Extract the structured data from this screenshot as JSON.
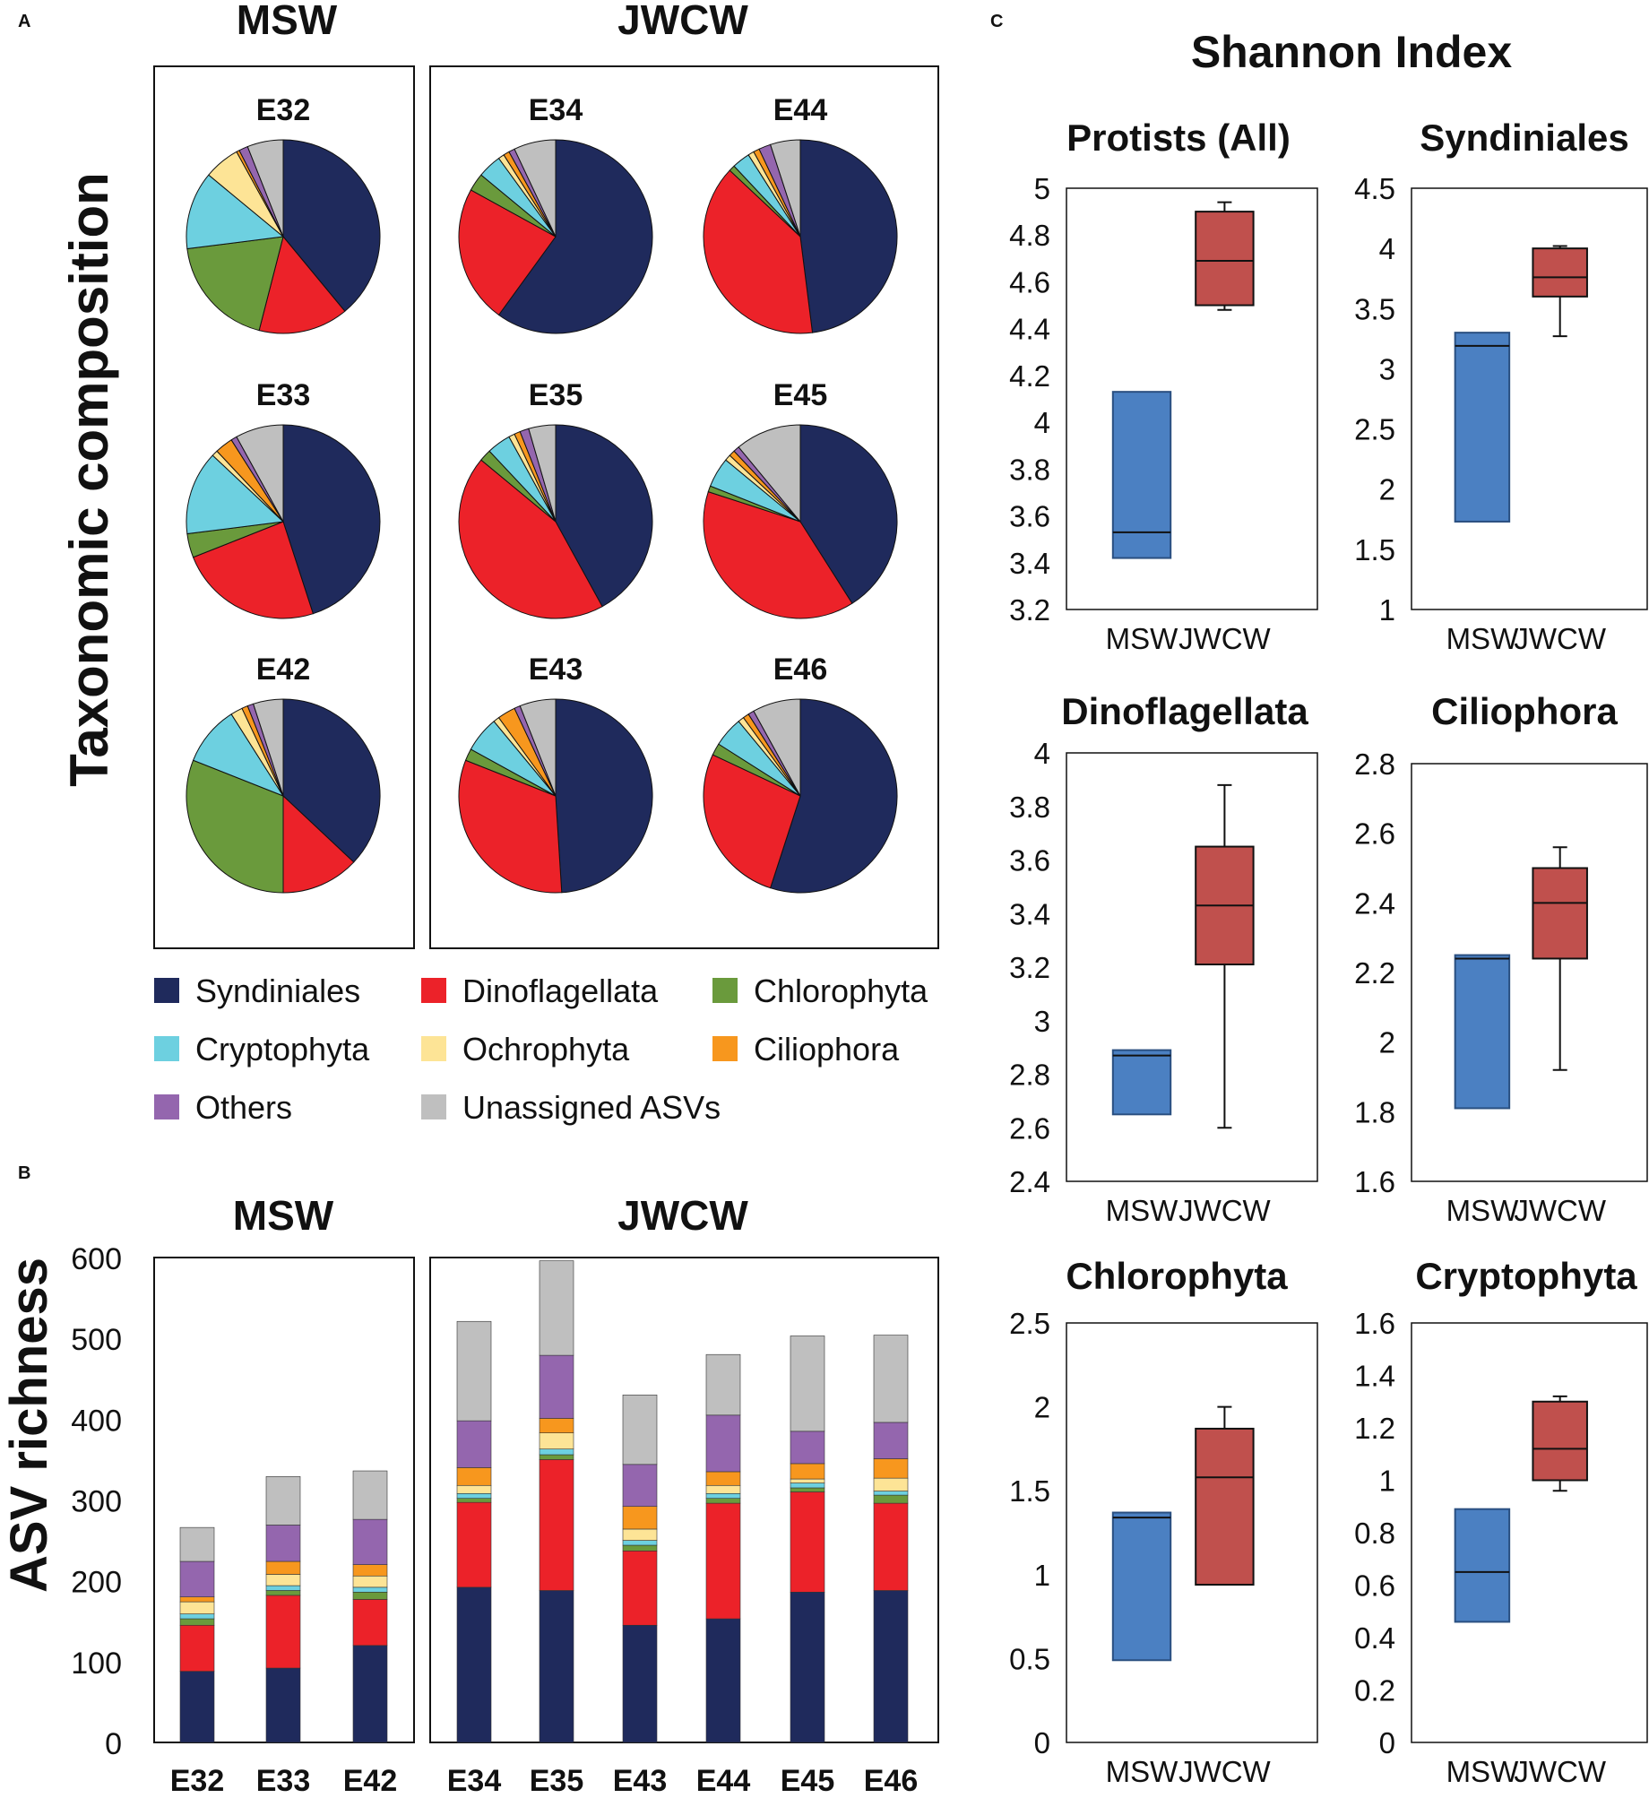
{
  "panel_labels": {
    "a": "A",
    "b": "B",
    "c": "C"
  },
  "legend": [
    {
      "name": "Syndiniales",
      "color": "#1f2a5c"
    },
    {
      "name": "Dinoflagellata",
      "color": "#ec2229"
    },
    {
      "name": "Chlorophyta",
      "color": "#6a9a3c"
    },
    {
      "name": "Cryptophyta",
      "color": "#6dd0e0"
    },
    {
      "name": "Ochrophyta",
      "color": "#fde496"
    },
    {
      "name": "Ciliophora",
      "color": "#f7971e"
    },
    {
      "name": "Others",
      "color": "#9466ae"
    },
    {
      "name": "Unassigned ASVs",
      "color": "#bfbfbf"
    }
  ],
  "chart_data": [
    {
      "type": "pie",
      "title": "Taxonomic composition",
      "groups": [
        {
          "name": "MSW",
          "samples": [
            "E32",
            "E33",
            "E42"
          ]
        },
        {
          "name": "JWCW",
          "samples": [
            "E34",
            "E44",
            "E35",
            "E45",
            "E43",
            "E46"
          ]
        }
      ],
      "categories": [
        "Syndiniales",
        "Dinoflagellata",
        "Chlorophyta",
        "Cryptophyta",
        "Ochrophyta",
        "Ciliophora",
        "Others",
        "Unassigned ASVs"
      ],
      "pies": [
        {
          "sample": "E32",
          "values": [
            39,
            15,
            19,
            13,
            6,
            0.5,
            1.5,
            6
          ]
        },
        {
          "sample": "E33",
          "values": [
            45,
            24,
            4,
            14,
            1,
            3,
            1,
            8
          ]
        },
        {
          "sample": "E42",
          "values": [
            37,
            13,
            31,
            10,
            2,
            1,
            1,
            5
          ]
        },
        {
          "sample": "E34",
          "values": [
            60,
            23,
            3,
            4,
            1,
            1,
            1,
            7
          ]
        },
        {
          "sample": "E44",
          "values": [
            48,
            39,
            1,
            3,
            1,
            1,
            2,
            5
          ]
        },
        {
          "sample": "E35",
          "values": [
            42,
            44,
            2,
            4,
            1,
            1,
            1.5,
            4.5
          ]
        },
        {
          "sample": "E45",
          "values": [
            41,
            39,
            1,
            5,
            1,
            1,
            1,
            11
          ]
        },
        {
          "sample": "E43",
          "values": [
            49,
            32,
            2,
            6,
            1,
            3,
            1,
            6
          ]
        },
        {
          "sample": "E46",
          "values": [
            55,
            27,
            2,
            5,
            1,
            1,
            1,
            8
          ]
        }
      ]
    },
    {
      "type": "bar",
      "stacked": true,
      "ylabel": "ASV richness",
      "ylim": [
        0,
        600
      ],
      "yticks": [
        0,
        100,
        200,
        300,
        400,
        500,
        600
      ],
      "groups": [
        {
          "name": "MSW",
          "categories": [
            "E32",
            "E33",
            "E42"
          ]
        },
        {
          "name": "JWCW",
          "categories": [
            "E34",
            "E35",
            "E43",
            "E44",
            "E45",
            "E46"
          ]
        }
      ],
      "series_order": [
        "Syndiniales",
        "Dinoflagellata",
        "Chlorophyta",
        "Cryptophyta",
        "Ochrophyta",
        "Ciliophora",
        "Others",
        "Unassigned ASVs"
      ],
      "stacks": {
        "E32": [
          88,
          57,
          8,
          6,
          15,
          6,
          44,
          42
        ],
        "E33": [
          92,
          90,
          6,
          6,
          14,
          16,
          45,
          60
        ],
        "E42": [
          120,
          57,
          9,
          6,
          14,
          14,
          56,
          60
        ],
        "E34": [
          192,
          105,
          5,
          6,
          10,
          22,
          58,
          123
        ],
        "E35": [
          188,
          162,
          6,
          7,
          20,
          18,
          78,
          117
        ],
        "E43": [
          145,
          92,
          7,
          6,
          14,
          28,
          52,
          86
        ],
        "E44": [
          153,
          143,
          6,
          6,
          10,
          17,
          70,
          75
        ],
        "E45": [
          186,
          124,
          5,
          6,
          5,
          19,
          40,
          118
        ],
        "E46": [
          188,
          108,
          10,
          5,
          16,
          24,
          45,
          108
        ]
      }
    },
    {
      "type": "box",
      "title": "Shannon Index",
      "x_categories": [
        "MSW",
        "JWCW"
      ],
      "panels": [
        {
          "title": "Protists (All)",
          "ylim": [
            3.2,
            5
          ],
          "yticks": [
            "3.2",
            "3.4",
            "3.6",
            "3.8",
            "4",
            "4.2",
            "4.4",
            "4.6",
            "4.8",
            "5"
          ],
          "boxes": [
            {
              "group": "MSW",
              "min": 3.42,
              "q1": 3.42,
              "median": 3.53,
              "q3": 4.13,
              "max": 4.13
            },
            {
              "group": "JWCW",
              "min": 4.48,
              "q1": 4.5,
              "median": 4.69,
              "q3": 4.9,
              "max": 4.94
            }
          ]
        },
        {
          "title": "Syndiniales",
          "ylim": [
            1,
            4.5
          ],
          "yticks": [
            "1",
            "1.5",
            "2",
            "2.5",
            "3",
            "3.5",
            "4",
            "4.5"
          ],
          "boxes": [
            {
              "group": "MSW",
              "min": 1.73,
              "q1": 1.73,
              "median": 3.19,
              "q3": 3.3,
              "max": 3.3
            },
            {
              "group": "JWCW",
              "min": 3.27,
              "q1": 3.6,
              "median": 3.76,
              "q3": 4.0,
              "max": 4.02
            }
          ]
        },
        {
          "title": "Dinoflagellata",
          "ylim": [
            2.4,
            4
          ],
          "yticks": [
            "2.4",
            "2.6",
            "2.8",
            "3",
            "3.2",
            "3.4",
            "3.6",
            "3.8",
            "4"
          ],
          "boxes": [
            {
              "group": "MSW",
              "min": 2.65,
              "q1": 2.65,
              "median": 2.87,
              "q3": 2.89,
              "max": 2.89
            },
            {
              "group": "JWCW",
              "min": 2.6,
              "q1": 3.21,
              "median": 3.43,
              "q3": 3.65,
              "max": 3.88
            }
          ]
        },
        {
          "title": "Ciliophora",
          "ylim": [
            1.6,
            2.8
          ],
          "yticks": [
            "1.6",
            "1.8",
            "2",
            "2.2",
            "2.4",
            "2.6",
            "2.8"
          ],
          "boxes": [
            {
              "group": "MSW",
              "min": 1.81,
              "q1": 1.81,
              "median": 2.24,
              "q3": 2.25,
              "max": 2.25
            },
            {
              "group": "JWCW",
              "min": 1.92,
              "q1": 2.24,
              "median": 2.4,
              "q3": 2.5,
              "max": 2.56
            }
          ]
        },
        {
          "title": "Chlorophyta",
          "ylim": [
            0,
            2.5
          ],
          "yticks": [
            "0",
            "0.5",
            "1",
            "1.5",
            "2",
            "2.5"
          ],
          "boxes": [
            {
              "group": "MSW",
              "min": 0.49,
              "q1": 0.49,
              "median": 1.34,
              "q3": 1.37,
              "max": 1.37
            },
            {
              "group": "JWCW",
              "min": 0.94,
              "q1": 0.94,
              "median": 1.58,
              "q3": 1.87,
              "max": 2.0
            }
          ]
        },
        {
          "title": "Cryptophyta",
          "ylim": [
            0,
            1.6
          ],
          "yticks": [
            "0",
            "0.2",
            "0.4",
            "0.6",
            "0.8",
            "1",
            "1.2",
            "1.4",
            "1.6"
          ],
          "boxes": [
            {
              "group": "MSW",
              "min": 0.46,
              "q1": 0.46,
              "median": 0.65,
              "q3": 0.89,
              "max": 0.89
            },
            {
              "group": "JWCW",
              "min": 0.96,
              "q1": 1.0,
              "median": 1.12,
              "q3": 1.3,
              "max": 1.32
            }
          ]
        }
      ]
    }
  ]
}
